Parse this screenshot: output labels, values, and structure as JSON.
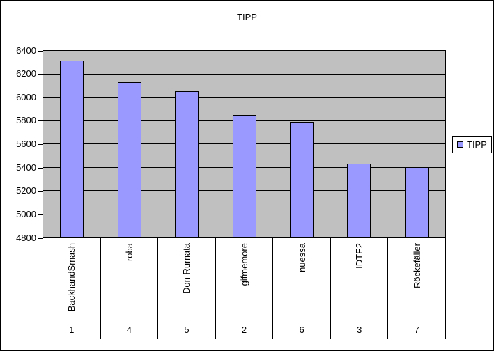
{
  "title": "TIPP",
  "legend": {
    "label": "TIPP"
  },
  "colors": {
    "bar_fill": "#9999ff",
    "plot_background": "#c0c0c0",
    "gridline": "#000000",
    "chart_background": "#ffffff",
    "border": "#000000"
  },
  "chart_data": {
    "type": "bar",
    "title": "TIPP",
    "categories": [
      "BackhandSmash",
      "roba",
      "Don Rumata",
      "gifmemore",
      "nuessa",
      "IDTE2",
      "Röckefäller"
    ],
    "category_numbers": [
      "1",
      "4",
      "5",
      "2",
      "6",
      "3",
      "7"
    ],
    "series": [
      {
        "name": "TIPP",
        "values": [
          6315,
          6130,
          6055,
          5850,
          5790,
          5430,
          5400
        ]
      }
    ],
    "xlabel": "",
    "ylabel": "",
    "ylim": [
      4800,
      6400
    ],
    "ytick_interval": 200,
    "yticks": [
      6400,
      6200,
      6000,
      5800,
      5600,
      5400,
      5200,
      5000,
      4800
    ],
    "grid": true,
    "legend_position": "right",
    "plot_background": "#c0c0c0",
    "bar_color": "#9999ff"
  }
}
